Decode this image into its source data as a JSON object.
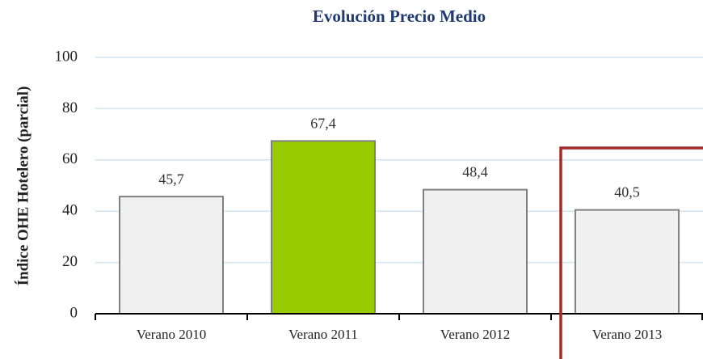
{
  "chart_data": {
    "type": "bar",
    "title": "Evolución Precio Medio",
    "y_axis_label": "Índice OHE Hotelero (parcial)",
    "categories": [
      "Verano 2010",
      "Verano 2011",
      "Verano 2012",
      "Verano 2013"
    ],
    "values": [
      45.7,
      67.4,
      48.4,
      40.5
    ],
    "value_labels": [
      "45,7",
      "67,4",
      "48,4",
      "40,5"
    ],
    "colors": [
      "#f0f0f0",
      "#99cc00",
      "#f0f0f0",
      "#f0f0f0"
    ],
    "ylim": [
      0,
      100
    ],
    "yticks": [
      0,
      20,
      40,
      60,
      80,
      100
    ],
    "grid": true
  }
}
